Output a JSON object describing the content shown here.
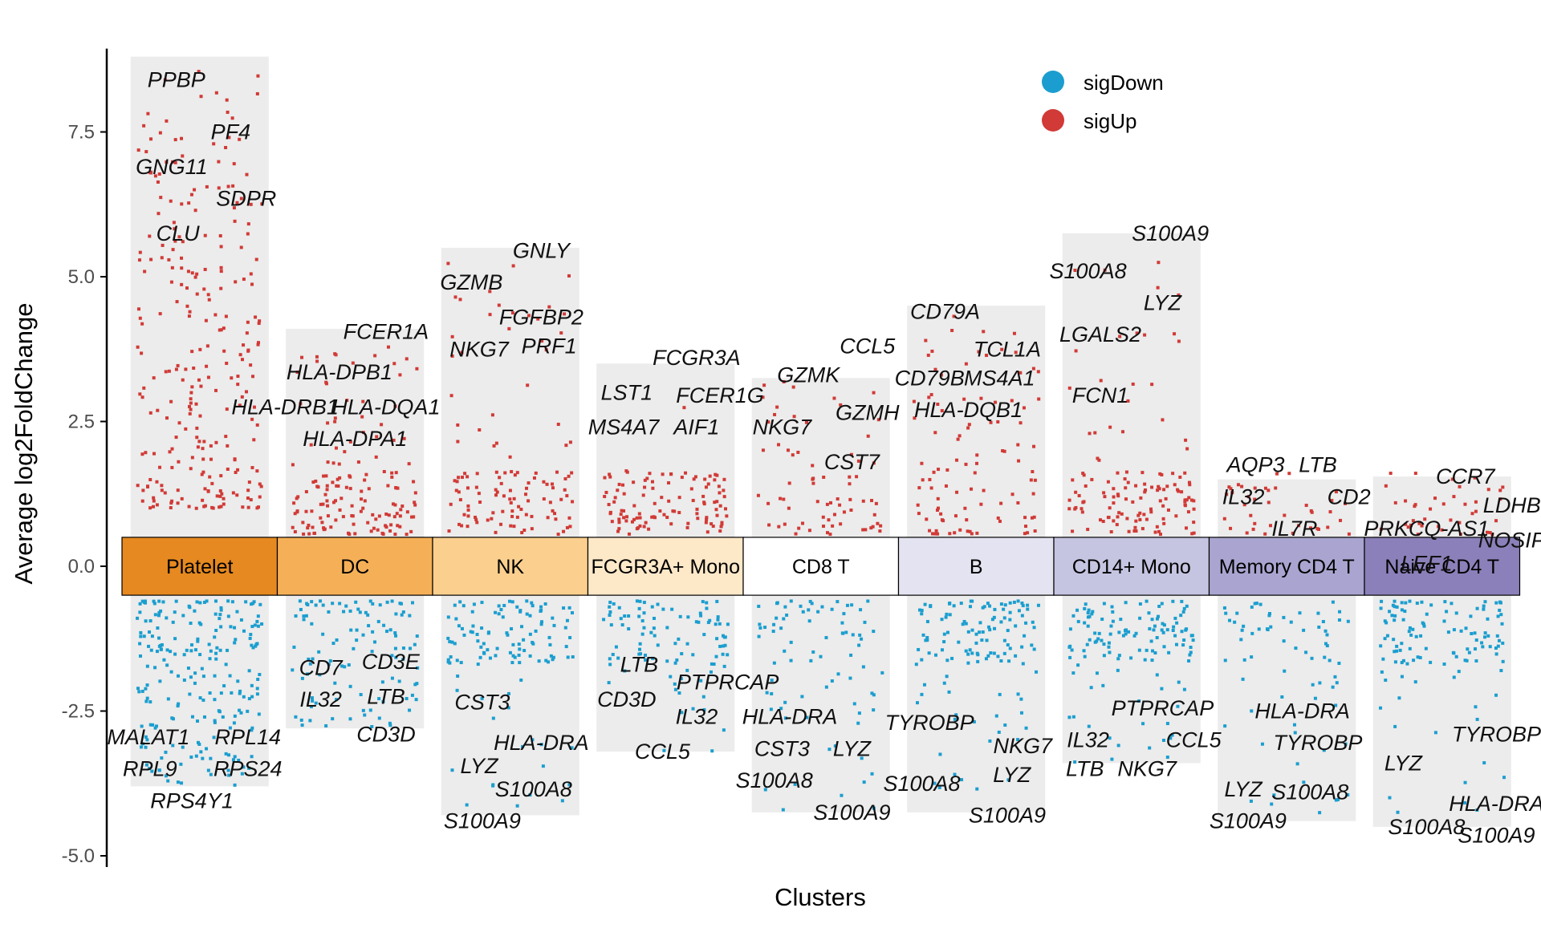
{
  "chart_data": {
    "type": "scatter",
    "subtype": "jitter-volcano-by-cluster",
    "xlabel": "Clusters",
    "ylabel": "Average log2FoldChange",
    "ylim": [
      -5.0,
      8.8
    ],
    "yticks": [
      -5.0,
      -2.5,
      0.0,
      2.5,
      5.0,
      7.5
    ],
    "ytick_labels": [
      "-5.0",
      "-2.5",
      "0.0",
      "2.5",
      "5.0",
      "7.5"
    ],
    "grid": false,
    "legend": {
      "position": "top-right",
      "entries": [
        {
          "label": "sigDown",
          "color": "#1b9ecf"
        },
        {
          "label": "sigUp",
          "color": "#d13a36"
        }
      ]
    },
    "band_ylim": [
      -0.5,
      0.5
    ],
    "clusters": [
      {
        "name": "Platelet",
        "color": "#e58920",
        "bg_range": [
          -3.8,
          8.8
        ],
        "up_range": [
          1.0,
          8.6
        ],
        "down_range": [
          -0.6,
          -3.8
        ],
        "up_count": 260,
        "down_count": 220,
        "up_density": 0.0,
        "down_density": 0.0,
        "up_labels": [
          {
            "gene": "PPBP",
            "x": -0.15,
            "y": 8.4
          },
          {
            "gene": "PF4",
            "x": 0.2,
            "y": 7.5
          },
          {
            "gene": "GNG11",
            "x": -0.18,
            "y": 6.9
          },
          {
            "gene": "SDPR",
            "x": 0.3,
            "y": 6.35
          },
          {
            "gene": "CLU",
            "x": -0.14,
            "y": 5.75
          }
        ],
        "down_labels": [
          {
            "gene": "MALAT1",
            "x": -0.33,
            "y": -2.95
          },
          {
            "gene": "RPL14",
            "x": 0.31,
            "y": -2.95
          },
          {
            "gene": "RPL9",
            "x": -0.32,
            "y": -3.5
          },
          {
            "gene": "RPS24",
            "x": 0.31,
            "y": -3.5
          },
          {
            "gene": "RPS4Y1",
            "x": -0.05,
            "y": -4.05
          }
        ]
      },
      {
        "name": "DC",
        "color": "#f5b057",
        "bg_range": [
          -2.8,
          4.1
        ],
        "up_range": [
          0.55,
          3.9
        ],
        "down_range": [
          -0.6,
          -2.8
        ],
        "up_count": 150,
        "down_count": 110,
        "up_density": 0.55,
        "down_density": 0.0,
        "up_labels": [
          {
            "gene": "FCER1A",
            "x": 0.2,
            "y": 4.05
          },
          {
            "gene": "HLA-DPB1",
            "x": -0.1,
            "y": 3.35
          },
          {
            "gene": "HLA-DRB1",
            "x": -0.45,
            "y": 2.75
          },
          {
            "gene": "HLA-DQA1",
            "x": 0.2,
            "y": 2.75
          },
          {
            "gene": "HLA-DPA1",
            "x": 0.0,
            "y": 2.2
          }
        ],
        "down_labels": [
          {
            "gene": "CD7",
            "x": -0.22,
            "y": -1.75
          },
          {
            "gene": "CD3E",
            "x": 0.23,
            "y": -1.65
          },
          {
            "gene": "IL32",
            "x": -0.22,
            "y": -2.3
          },
          {
            "gene": "LTB",
            "x": 0.2,
            "y": -2.25
          },
          {
            "gene": "CD3D",
            "x": 0.2,
            "y": -2.9
          }
        ]
      },
      {
        "name": "NK",
        "color": "#fbcf8e",
        "bg_range": [
          -4.3,
          5.5
        ],
        "up_range": [
          0.55,
          5.4
        ],
        "down_range": [
          -0.6,
          -4.3
        ],
        "up_count": 120,
        "down_count": 120,
        "up_density": 0.7,
        "down_density": 0.65,
        "up_labels": [
          {
            "gene": "GNLY",
            "x": 0.2,
            "y": 5.45
          },
          {
            "gene": "GZMB",
            "x": -0.25,
            "y": 4.9
          },
          {
            "gene": "FGFBP2",
            "x": 0.2,
            "y": 4.3
          },
          {
            "gene": "NKG7",
            "x": -0.2,
            "y": 3.75
          },
          {
            "gene": "PRF1",
            "x": 0.25,
            "y": 3.8
          }
        ],
        "down_labels": [
          {
            "gene": "CST3",
            "x": -0.18,
            "y": -2.35
          },
          {
            "gene": "HLA-DRA",
            "x": 0.2,
            "y": -3.05
          },
          {
            "gene": "LYZ",
            "x": -0.2,
            "y": -3.45
          },
          {
            "gene": "S100A8",
            "x": 0.15,
            "y": -3.85
          },
          {
            "gene": "S100A9",
            "x": -0.18,
            "y": -4.4
          }
        ]
      },
      {
        "name": "FCGR3A+ Mono",
        "color": "#fde8c8",
        "bg_range": [
          -3.2,
          3.5
        ],
        "up_range": [
          0.55,
          3.4
        ],
        "down_range": [
          -0.6,
          -3.2
        ],
        "up_count": 110,
        "down_count": 100,
        "up_density": 0.9,
        "down_density": 0.45,
        "up_labels": [
          {
            "gene": "FCGR3A",
            "x": 0.2,
            "y": 3.6
          },
          {
            "gene": "LST1",
            "x": -0.25,
            "y": 3.0
          },
          {
            "gene": "FCER1G",
            "x": 0.35,
            "y": 2.95
          },
          {
            "gene": "MS4A7",
            "x": -0.27,
            "y": 2.4
          },
          {
            "gene": "AIF1",
            "x": 0.2,
            "y": 2.4
          }
        ],
        "down_labels": [
          {
            "gene": "LTB",
            "x": -0.17,
            "y": -1.7
          },
          {
            "gene": "PTPRCAP",
            "x": 0.4,
            "y": -2.0
          },
          {
            "gene": "CD3D",
            "x": -0.25,
            "y": -2.3
          },
          {
            "gene": "IL32",
            "x": 0.2,
            "y": -2.6
          },
          {
            "gene": "CCL5",
            "x": -0.02,
            "y": -3.2
          }
        ]
      },
      {
        "name": "CD8 T",
        "color": "#ffffff",
        "bg_range": [
          -4.25,
          3.25
        ],
        "up_range": [
          0.55,
          3.2
        ],
        "down_range": [
          -0.6,
          -4.25
        ],
        "up_count": 70,
        "down_count": 80,
        "up_density": 0.2,
        "down_density": 0.25,
        "up_labels": [
          {
            "gene": "CCL5",
            "x": 0.3,
            "y": 3.8
          },
          {
            "gene": "GZMK",
            "x": -0.08,
            "y": 3.3
          },
          {
            "gene": "GZMH",
            "x": 0.3,
            "y": 2.65
          },
          {
            "gene": "NKG7",
            "x": -0.25,
            "y": 2.4
          },
          {
            "gene": "CST7",
            "x": 0.2,
            "y": 1.8
          }
        ],
        "down_labels": [
          {
            "gene": "HLA-DRA",
            "x": -0.2,
            "y": -2.6
          },
          {
            "gene": "CST3",
            "x": -0.25,
            "y": -3.15
          },
          {
            "gene": "LYZ",
            "x": 0.2,
            "y": -3.15
          },
          {
            "gene": "S100A8",
            "x": -0.3,
            "y": -3.7
          },
          {
            "gene": "S100A9",
            "x": 0.2,
            "y": -4.25
          }
        ]
      },
      {
        "name": "B",
        "color": "#e3e3f1",
        "bg_range": [
          -4.25,
          4.5
        ],
        "up_range": [
          0.55,
          4.4
        ],
        "down_range": [
          -0.6,
          -4.25
        ],
        "up_count": 100,
        "down_count": 130,
        "up_density": 0.1,
        "down_density": 0.55,
        "up_labels": [
          {
            "gene": "CD79A",
            "x": -0.2,
            "y": 4.4
          },
          {
            "gene": "TCL1A",
            "x": 0.2,
            "y": 3.75
          },
          {
            "gene": "CD79B",
            "x": -0.3,
            "y": 3.25
          },
          {
            "gene": "MS4A1",
            "x": 0.15,
            "y": 3.25
          },
          {
            "gene": "HLA-DQB1",
            "x": -0.05,
            "y": 2.7
          }
        ],
        "down_labels": [
          {
            "gene": "TYROBP",
            "x": -0.3,
            "y": -2.7
          },
          {
            "gene": "NKG7",
            "x": 0.3,
            "y": -3.1
          },
          {
            "gene": "S100A8",
            "x": -0.35,
            "y": -3.75
          },
          {
            "gene": "LYZ",
            "x": 0.23,
            "y": -3.6
          },
          {
            "gene": "S100A9",
            "x": 0.2,
            "y": -4.3
          }
        ]
      },
      {
        "name": "CD14+ Mono",
        "color": "#c5c4e1",
        "bg_range": [
          -3.4,
          5.75
        ],
        "up_range": [
          0.55,
          5.6
        ],
        "down_range": [
          -0.6,
          -3.4
        ],
        "up_count": 130,
        "down_count": 130,
        "up_density": 0.6,
        "down_density": 0.6,
        "up_labels": [
          {
            "gene": "S100A9",
            "x": 0.25,
            "y": 5.75
          },
          {
            "gene": "S100A8",
            "x": -0.28,
            "y": 5.1
          },
          {
            "gene": "LYZ",
            "x": 0.2,
            "y": 4.55
          },
          {
            "gene": "LGALS2",
            "x": -0.2,
            "y": 4.0
          },
          {
            "gene": "FCN1",
            "x": -0.2,
            "y": 2.95
          }
        ],
        "down_labels": [
          {
            "gene": "PTPRCAP",
            "x": 0.2,
            "y": -2.45
          },
          {
            "gene": "IL32",
            "x": -0.28,
            "y": -3.0
          },
          {
            "gene": "CCL5",
            "x": 0.4,
            "y": -3.0
          },
          {
            "gene": "LTB",
            "x": -0.3,
            "y": -3.5
          },
          {
            "gene": "NKG7",
            "x": 0.1,
            "y": -3.5
          }
        ]
      },
      {
        "name": "Memory CD4 T",
        "color": "#a9a5d0",
        "bg_range": [
          -4.4,
          1.5
        ],
        "up_range": [
          0.55,
          1.4
        ],
        "down_range": [
          -0.6,
          -4.4
        ],
        "up_count": 40,
        "down_count": 70,
        "up_density": 0.2,
        "down_density": 0.4,
        "up_labels": [
          {
            "gene": "AQP3",
            "x": -0.2,
            "y": 1.75
          },
          {
            "gene": "LTB",
            "x": 0.2,
            "y": 1.75
          },
          {
            "gene": "IL32",
            "x": -0.28,
            "y": 1.2
          },
          {
            "gene": "CD2",
            "x": 0.4,
            "y": 1.2
          },
          {
            "gene": "IL7R",
            "x": 0.05,
            "y": 0.65
          }
        ],
        "down_labels": [
          {
            "gene": "HLA-DRA",
            "x": 0.1,
            "y": -2.5
          },
          {
            "gene": "TYROBP",
            "x": 0.2,
            "y": -3.05
          },
          {
            "gene": "LYZ",
            "x": -0.28,
            "y": -3.85
          },
          {
            "gene": "S100A8",
            "x": 0.15,
            "y": -3.9
          },
          {
            "gene": "S100A9",
            "x": -0.25,
            "y": -4.4
          }
        ]
      },
      {
        "name": "Naive CD4 T",
        "color": "#8b80b9",
        "bg_range": [
          -4.5,
          1.55
        ],
        "up_range": [
          0.55,
          1.4
        ],
        "down_range": [
          -0.6,
          -4.5
        ],
        "up_count": 40,
        "down_count": 120,
        "up_density": 0.2,
        "down_density": 0.65,
        "up_labels": [
          {
            "gene": "CCR7",
            "x": 0.15,
            "y": 1.55
          },
          {
            "gene": "LDHB",
            "x": 0.45,
            "y": 1.05
          },
          {
            "gene": "PRKCQ-AS1",
            "x": -0.1,
            "y": 0.65
          },
          {
            "gene": "NOSIP",
            "x": 0.45,
            "y": 0.45
          },
          {
            "gene": "LEF1",
            "x": -0.1,
            "y": 0.05
          }
        ],
        "down_labels": [
          {
            "gene": "TYROBP",
            "x": 0.35,
            "y": -2.9
          },
          {
            "gene": "LYZ",
            "x": -0.25,
            "y": -3.4
          },
          {
            "gene": "HLA-DRA",
            "x": 0.35,
            "y": -4.1
          },
          {
            "gene": "S100A8",
            "x": -0.1,
            "y": -4.5
          },
          {
            "gene": "S100A9",
            "x": 0.35,
            "y": -4.65
          }
        ]
      }
    ]
  }
}
